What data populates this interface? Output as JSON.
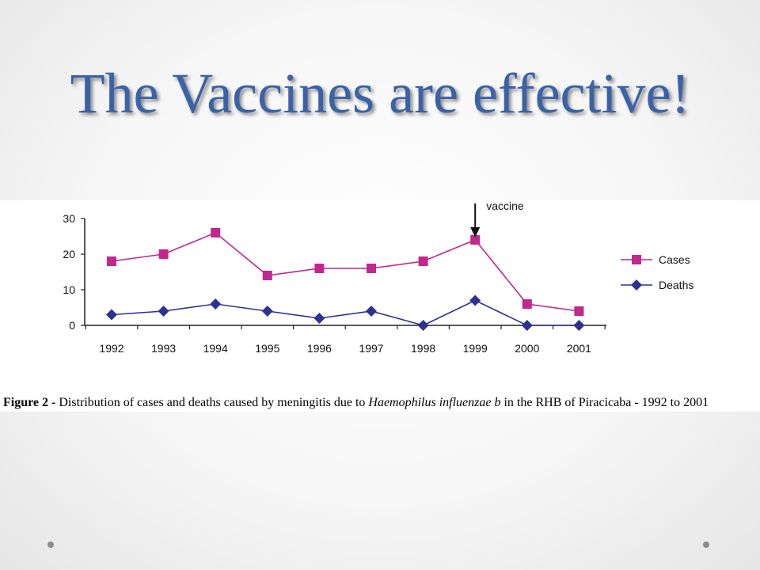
{
  "slide": {
    "title": "The Vaccines are effective!"
  },
  "caption": {
    "label": "Figure 2 -",
    "text_before": " Distribution of cases and deaths caused by meningitis due to ",
    "italic": "Haemophilus influenzae b",
    "text_after": " in the RHB of Piracicaba - 1992 to 2001"
  },
  "chart_data": {
    "type": "line",
    "title": "",
    "xlabel": "",
    "ylabel": "",
    "categories": [
      "1992",
      "1993",
      "1994",
      "1995",
      "1996",
      "1997",
      "1998",
      "1999",
      "2000",
      "2001"
    ],
    "yticks": [
      "0",
      "10",
      "20",
      "30"
    ],
    "ylim": [
      0,
      30
    ],
    "grid": false,
    "legend_position": "right",
    "series": [
      {
        "name": "Cases",
        "color": "#c2278e",
        "marker": "square",
        "values": [
          18,
          20,
          26,
          14,
          16,
          16,
          18,
          24,
          6,
          4
        ]
      },
      {
        "name": "Deaths",
        "color": "#2e3192",
        "marker": "diamond",
        "values": [
          3,
          4,
          6,
          4,
          2,
          4,
          0,
          7,
          0,
          0
        ]
      }
    ],
    "annotations": [
      {
        "text": "vaccine",
        "x": "1999",
        "type": "arrow-down"
      }
    ]
  },
  "colors": {
    "title": "#3a62a8",
    "cases": "#c2278e",
    "deaths": "#2e3192"
  }
}
